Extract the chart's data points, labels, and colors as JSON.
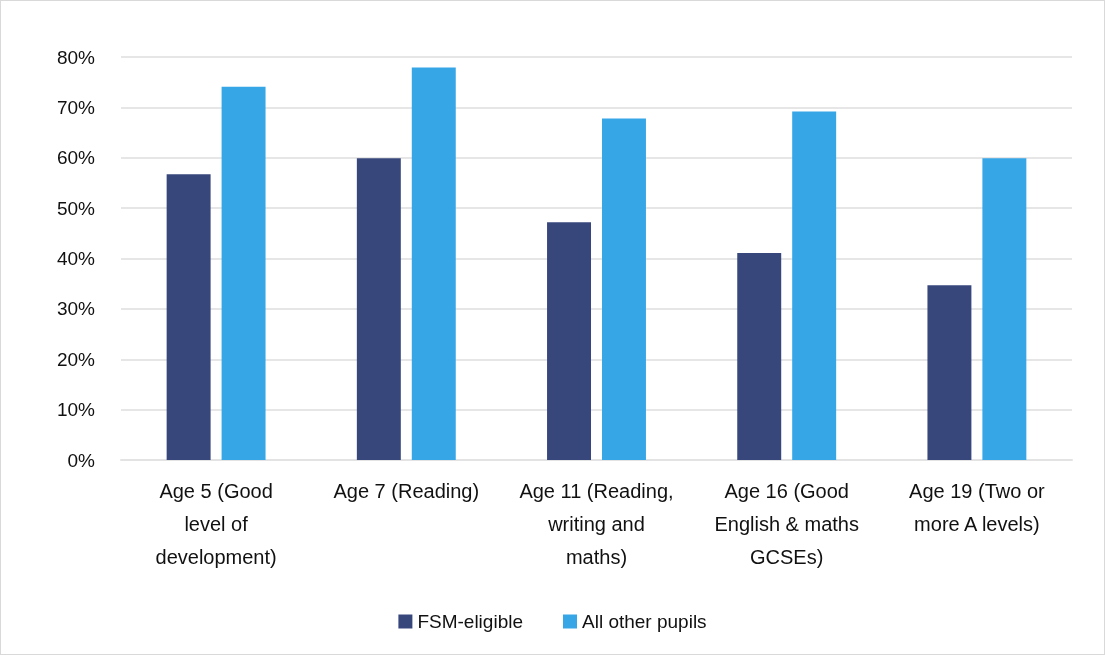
{
  "chart_data": {
    "type": "bar",
    "categories": [
      "Age 5 (Good\nlevel of\ndevelopment)",
      "Age 7 (Reading)",
      "Age 11 (Reading,\nwriting and\nmaths)",
      "Age 16 (Good\nEnglish & maths\nGCSEs)",
      "Age 19 (Two or\nmore A levels)"
    ],
    "series": [
      {
        "name": "FSM-eligible",
        "color": "#37477c",
        "values": [
          56.7,
          59.9,
          47.2,
          41.1,
          34.7
        ]
      },
      {
        "name": "All other pupils",
        "color": "#36a6e7",
        "values": [
          74.1,
          77.9,
          67.8,
          69.2,
          59.9
        ]
      }
    ],
    "ylim": [
      0,
      80
    ],
    "yticks": [
      {
        "value": 0,
        "label": "0%"
      },
      {
        "value": 10,
        "label": "10%"
      },
      {
        "value": 20,
        "label": "20%"
      },
      {
        "value": 30,
        "label": "30%"
      },
      {
        "value": 40,
        "label": "40%"
      },
      {
        "value": 50,
        "label": "50%"
      },
      {
        "value": 60,
        "label": "60%"
      },
      {
        "value": 70,
        "label": "70%"
      },
      {
        "value": 80,
        "label": "80%"
      }
    ],
    "grid": "y",
    "legend": "bottom"
  }
}
